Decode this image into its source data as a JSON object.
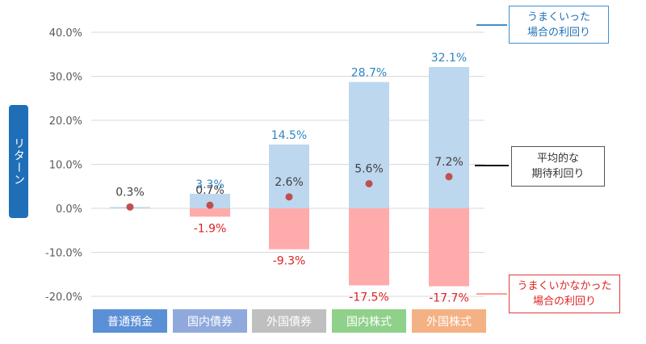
{
  "chart_data": {
    "type": "bar",
    "ylabel": "リターン",
    "ylim": [
      -20,
      40
    ],
    "yticks": [
      "-20.0%",
      "-10.0%",
      "0.0%",
      "10.0%",
      "20.0%",
      "30.0%",
      "40.0%"
    ],
    "grid": true,
    "categories": [
      "普通預金",
      "国内債券",
      "外国債券",
      "国内株式",
      "外国株式"
    ],
    "category_colors": [
      "#5b8fd6",
      "#8fa9dc",
      "#bfbfbf",
      "#8fd08a",
      "#f4b183"
    ],
    "upside": [
      0.3,
      3.3,
      14.5,
      28.7,
      32.1
    ],
    "downside": [
      0.3,
      -1.9,
      -9.3,
      -17.5,
      -17.7
    ],
    "expected": [
      0.3,
      0.7,
      2.6,
      5.6,
      7.2
    ],
    "upside_labels": [
      "",
      "3.3%",
      "14.5%",
      "28.7%",
      "32.1%"
    ],
    "downside_labels": [
      "",
      "-1.9%",
      "-9.3%",
      "-17.5%",
      "-17.7%"
    ],
    "expected_labels": [
      "0.3%",
      "0.7%",
      "2.6%",
      "5.6%",
      "7.2%"
    ],
    "colors": {
      "upside_fill": "#bdd7ee",
      "downside_fill": "#ffabab",
      "dot": "#c0504d",
      "upside_text": "#2e86c1",
      "downside_text": "#e02020",
      "expected_text": "#404040"
    }
  },
  "callouts": {
    "good": "うまくいった\n場合の利回り",
    "average": "平均的な\n期待利回り",
    "bad": "うまくいかなかった\n場合の利回り"
  }
}
